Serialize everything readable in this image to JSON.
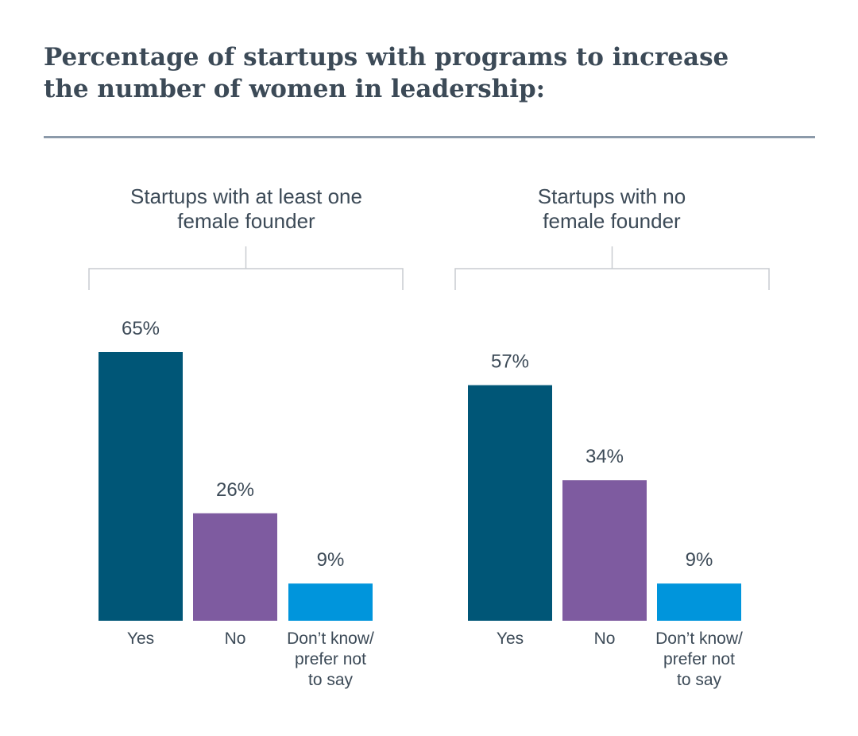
{
  "title_lines": [
    "Percentage of startups with programs to increase",
    "the number of women in leadership:"
  ],
  "chart_data": {
    "type": "bar",
    "title": "Percentage of startups with programs to increase the number of women in leadership:",
    "categories": [
      "Yes",
      "No",
      "Don’t know/ prefer not to say"
    ],
    "category_label_lines": [
      [
        "Yes"
      ],
      [
        "No"
      ],
      [
        "Don’t know/",
        "prefer not",
        "to say"
      ]
    ],
    "unit": "%",
    "ylim": [
      0,
      100
    ],
    "grid": false,
    "groups": [
      {
        "name": "Startups with at least one female founder",
        "name_lines": [
          "Startups with at least one",
          "female founder"
        ],
        "values": [
          65,
          26,
          9
        ],
        "labels": [
          "65%",
          "26%",
          "9%"
        ]
      },
      {
        "name": "Startups with no female founder",
        "name_lines": [
          "Startups with no",
          "female founder"
        ],
        "values": [
          57,
          34,
          9
        ],
        "labels": [
          "57%",
          "34%",
          "9%"
        ]
      }
    ],
    "colors": [
      "#005677",
      "#7e5ba0",
      "#0095dc"
    ]
  }
}
